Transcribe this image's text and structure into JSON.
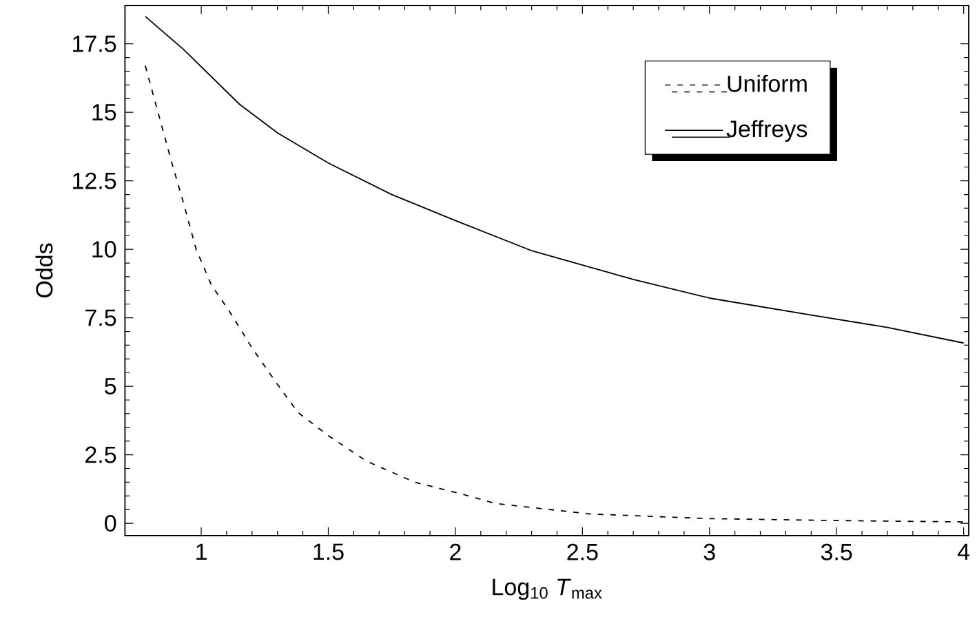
{
  "chart_data": {
    "type": "line",
    "xlabel": "Log$_{10}$ *T*$_{max}$",
    "ylabel": "Odds",
    "xlim": [
      0.7,
      4.02
    ],
    "ylim": [
      -0.45,
      18.9
    ],
    "xticks": [
      1,
      1.5,
      2,
      2.5,
      3,
      3.5,
      4
    ],
    "yticks": [
      0,
      2.5,
      5,
      7.5,
      10,
      12.5,
      15,
      17.5
    ],
    "legend": "top right",
    "grid": false,
    "marker": "none",
    "series": [
      {
        "name": "Uniform",
        "color": "#000000",
        "line_style": "dashed",
        "x": [
          0.78,
          0.83,
          0.88,
          0.93,
          0.98,
          1.04,
          1.11,
          1.2,
          1.29,
          1.38,
          1.5,
          1.65,
          1.84,
          2.02,
          2.16,
          2.53,
          3.0,
          3.5,
          4.0
        ],
        "values": [
          16.7,
          15.0,
          13.3,
          11.7,
          10.0,
          8.7,
          7.75,
          6.4,
          5.2,
          4.05,
          3.2,
          2.27,
          1.5,
          1.08,
          0.72,
          0.34,
          0.17,
          0.1,
          0.05
        ]
      },
      {
        "name": "Jeffreys",
        "color": "#000000",
        "line_style": "solid",
        "x": [
          0.78,
          0.93,
          1.15,
          1.3,
          1.5,
          1.75,
          2.0,
          2.3,
          2.7,
          3.0,
          3.4,
          3.7,
          4.0
        ],
        "values": [
          18.5,
          17.3,
          15.3,
          14.25,
          13.15,
          12.0,
          11.05,
          9.95,
          8.9,
          8.22,
          7.6,
          7.15,
          6.58
        ]
      }
    ]
  }
}
